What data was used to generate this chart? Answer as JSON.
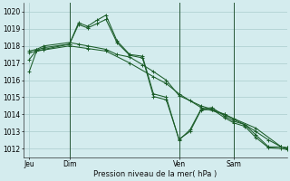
{
  "title": "Pression niveau de la mer( hPa )",
  "bg_color": "#d4ecee",
  "grid_color": "#aacccc",
  "line_color": "#1a5c28",
  "yticks": [
    1012,
    1013,
    1014,
    1015,
    1016,
    1017,
    1018,
    1019,
    1020
  ],
  "ylim": [
    1011.5,
    1020.5
  ],
  "xlim": [
    -3,
    141
  ],
  "xtick_labels": [
    "Jeu",
    "Dim",
    "Ven",
    "Sam"
  ],
  "xtick_positions": [
    0,
    22,
    82,
    112
  ],
  "vlines": [
    22,
    82,
    112
  ],
  "series": [
    {
      "x": [
        0,
        4,
        8,
        22,
        27,
        32,
        37,
        42,
        48,
        55,
        62,
        68,
        75,
        82,
        88,
        94,
        100,
        107,
        112,
        118,
        124,
        131,
        138,
        141
      ],
      "y": [
        1016.5,
        1017.7,
        1017.8,
        1018.1,
        1019.35,
        1019.15,
        1019.5,
        1019.8,
        1018.3,
        1017.5,
        1017.4,
        1015.2,
        1015.0,
        1012.5,
        1013.1,
        1014.3,
        1014.4,
        1013.9,
        1013.6,
        1013.4,
        1012.8,
        1012.1,
        1012.1,
        1012.0
      ]
    },
    {
      "x": [
        0,
        4,
        8,
        22,
        27,
        32,
        42,
        48,
        55,
        62,
        68,
        75,
        82,
        88,
        94,
        100,
        107,
        112,
        118,
        124,
        131,
        138,
        141
      ],
      "y": [
        1017.7,
        1017.8,
        1018.0,
        1018.2,
        1018.1,
        1018.0,
        1017.8,
        1017.5,
        1017.35,
        1016.9,
        1016.5,
        1016.0,
        1015.1,
        1014.8,
        1014.5,
        1014.3,
        1014.0,
        1013.7,
        1013.4,
        1013.0,
        1012.5,
        1012.1,
        1012.05
      ]
    },
    {
      "x": [
        0,
        4,
        8,
        22,
        27,
        32,
        37,
        42,
        48,
        55,
        62,
        68,
        75,
        82,
        88,
        94,
        100,
        107,
        112,
        118,
        124,
        131,
        138,
        141
      ],
      "y": [
        1017.2,
        1017.75,
        1017.9,
        1018.1,
        1019.25,
        1019.05,
        1019.3,
        1019.55,
        1018.2,
        1017.45,
        1017.3,
        1015.05,
        1014.85,
        1012.55,
        1013.0,
        1014.25,
        1014.3,
        1013.8,
        1013.5,
        1013.3,
        1012.65,
        1012.05,
        1012.0,
        1011.95
      ]
    },
    {
      "x": [
        0,
        4,
        22,
        32,
        42,
        55,
        68,
        75,
        82,
        94,
        107,
        112,
        124,
        138,
        141
      ],
      "y": [
        1017.6,
        1017.7,
        1018.0,
        1017.85,
        1017.7,
        1017.0,
        1016.2,
        1015.8,
        1015.2,
        1014.4,
        1014.0,
        1013.75,
        1013.2,
        1012.1,
        1012.05
      ]
    }
  ]
}
